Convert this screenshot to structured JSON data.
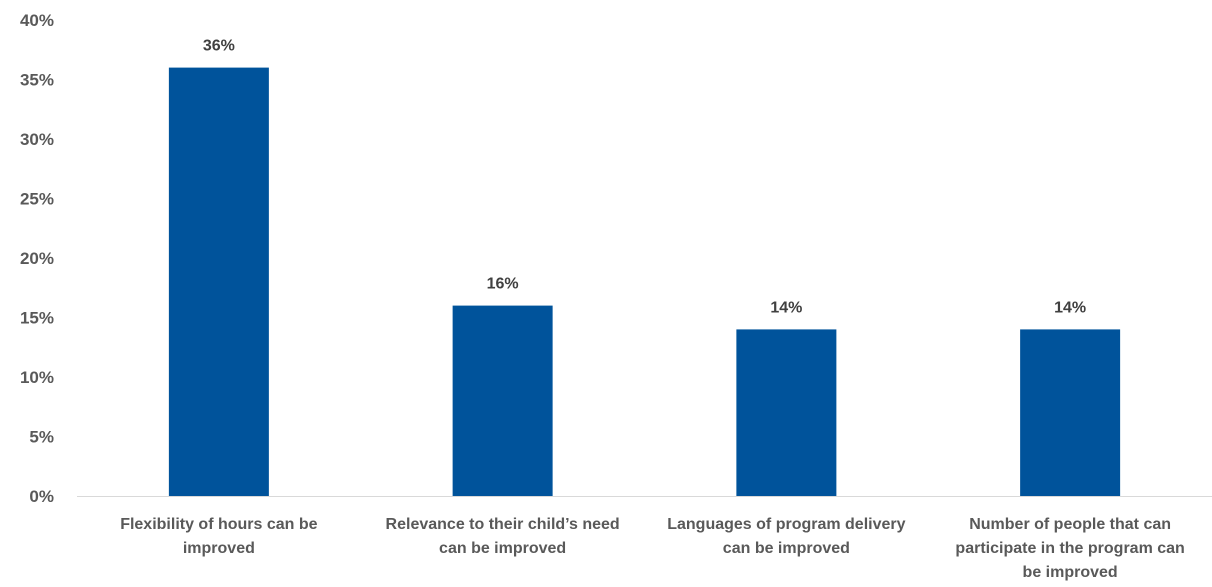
{
  "chart_data": {
    "type": "bar",
    "categories": [
      [
        "Flexibility of hours can be",
        "improved"
      ],
      [
        "Relevance to their child’s need",
        "can be improved"
      ],
      [
        "Languages of program delivery",
        "can be improved"
      ],
      [
        "Number of people that can",
        "participate in the program can",
        "be improved"
      ]
    ],
    "values": [
      36,
      16,
      14,
      14
    ],
    "data_labels": [
      "36%",
      "16%",
      "14%",
      "14%"
    ],
    "ylim": [
      0,
      40
    ],
    "yticks": [
      0,
      5,
      10,
      15,
      20,
      25,
      30,
      35,
      40
    ],
    "ytick_labels": [
      "0%",
      "5%",
      "10%",
      "15%",
      "20%",
      "25%",
      "30%",
      "35%",
      "40%"
    ],
    "title": "",
    "xlabel": "",
    "ylabel": "",
    "grid": false,
    "legend": "none",
    "bar_color": "#00539b"
  }
}
